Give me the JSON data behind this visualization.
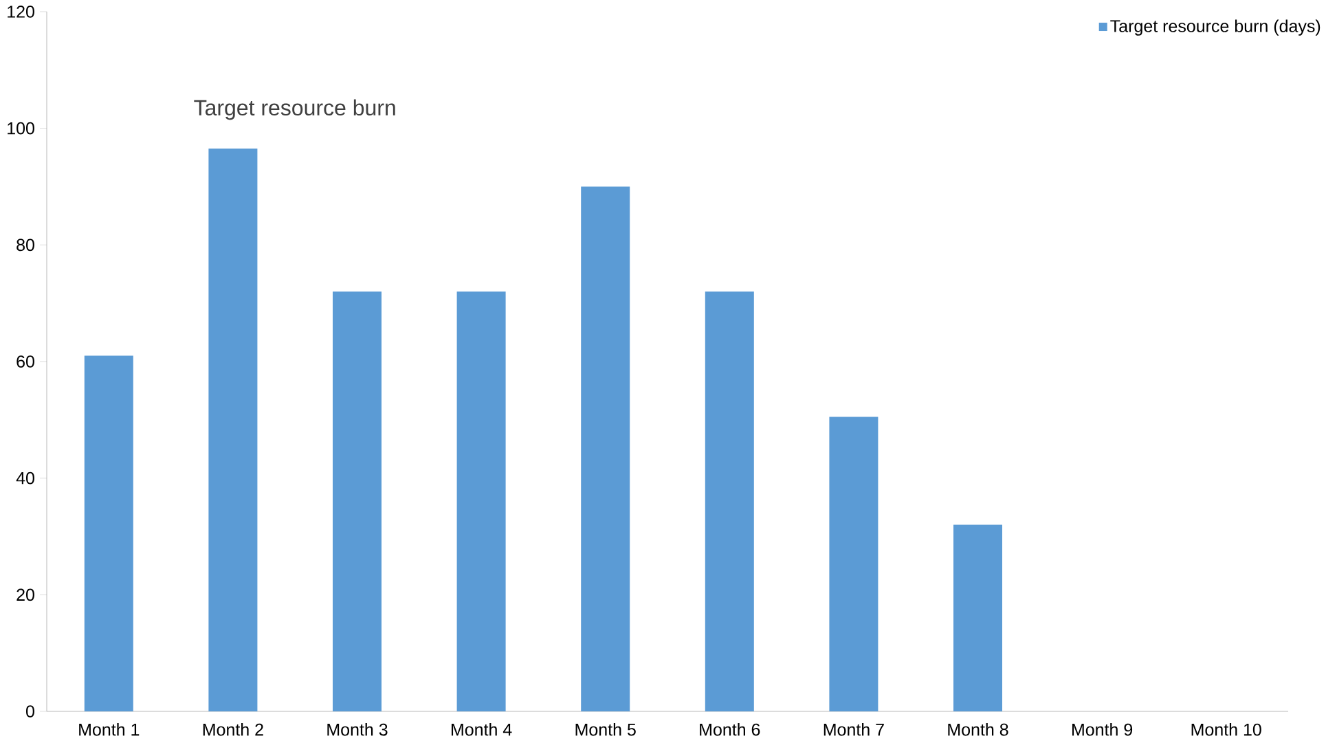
{
  "chart_data": {
    "type": "bar",
    "title": "Target resource burn",
    "categories": [
      "Month 1",
      "Month 2",
      "Month 3",
      "Month 4",
      "Month 5",
      "Month 6",
      "Month 7",
      "Month 8",
      "Month 9",
      "Month 10"
    ],
    "series": [
      {
        "name": "Target resource burn (days)",
        "color": "#5b9bd5",
        "values": [
          61,
          96.5,
          72,
          72,
          90,
          72,
          50.5,
          32,
          null,
          null
        ]
      }
    ],
    "ylim": [
      0,
      120
    ],
    "yticks": [
      0,
      20,
      40,
      60,
      80,
      100,
      120
    ],
    "legend": "top right"
  }
}
